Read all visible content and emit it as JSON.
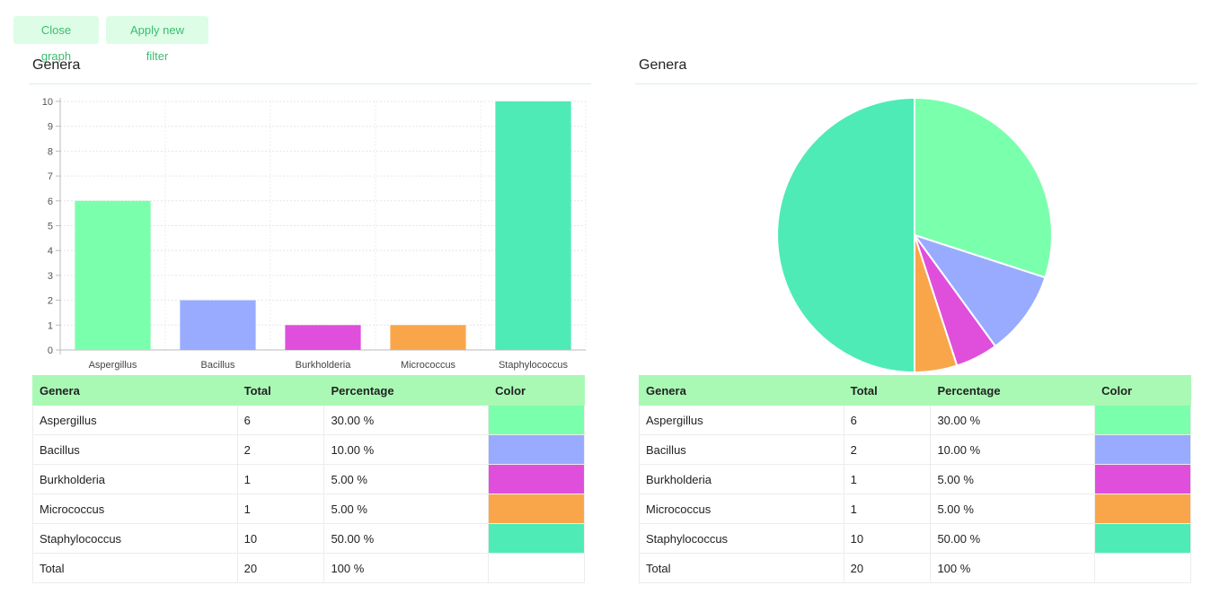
{
  "toolbar": {
    "close_label": "Close graph",
    "filter_label": "Apply new filter"
  },
  "left_panel": {
    "title": "Genera"
  },
  "right_panel": {
    "title": "Genera"
  },
  "table": {
    "headers": [
      "Genera",
      "Total",
      "Percentage",
      "Color"
    ],
    "rows": [
      {
        "genus": "Aspergillus",
        "total": "6",
        "percentage": "30.00 %",
        "color": "#7affad"
      },
      {
        "genus": "Bacillus",
        "total": "2",
        "percentage": "10.00 %",
        "color": "#99abff"
      },
      {
        "genus": "Burkholderia",
        "total": "1",
        "percentage": "5.00 %",
        "color": "#df4fdc"
      },
      {
        "genus": "Micrococcus",
        "total": "1",
        "percentage": "5.00 %",
        "color": "#f9a64b"
      },
      {
        "genus": "Staphylococcus",
        "total": "10",
        "percentage": "50.00 %",
        "color": "#4eebb6"
      }
    ],
    "footer": {
      "label": "Total",
      "total": "20",
      "percentage": "100 %"
    }
  },
  "chart_data": [
    {
      "type": "bar",
      "categories": [
        "Aspergillus",
        "Bacillus",
        "Burkholderia",
        "Micrococcus",
        "Staphylococcus"
      ],
      "values": [
        6,
        2,
        1,
        1,
        10
      ],
      "colors": [
        "#7affad",
        "#99abff",
        "#df4fdc",
        "#f9a64b",
        "#4eebb6"
      ],
      "ylim": [
        0,
        10
      ],
      "yticks": [
        0,
        1,
        2,
        3,
        4,
        5,
        6,
        7,
        8,
        9,
        10
      ],
      "grid": true,
      "title": "Genera"
    },
    {
      "type": "pie",
      "categories": [
        "Aspergillus",
        "Bacillus",
        "Burkholderia",
        "Micrococcus",
        "Staphylococcus"
      ],
      "values": [
        6,
        2,
        1,
        1,
        10
      ],
      "colors": [
        "#7affad",
        "#99abff",
        "#df4fdc",
        "#f9a64b",
        "#4eebb6"
      ],
      "title": "Genera"
    }
  ]
}
